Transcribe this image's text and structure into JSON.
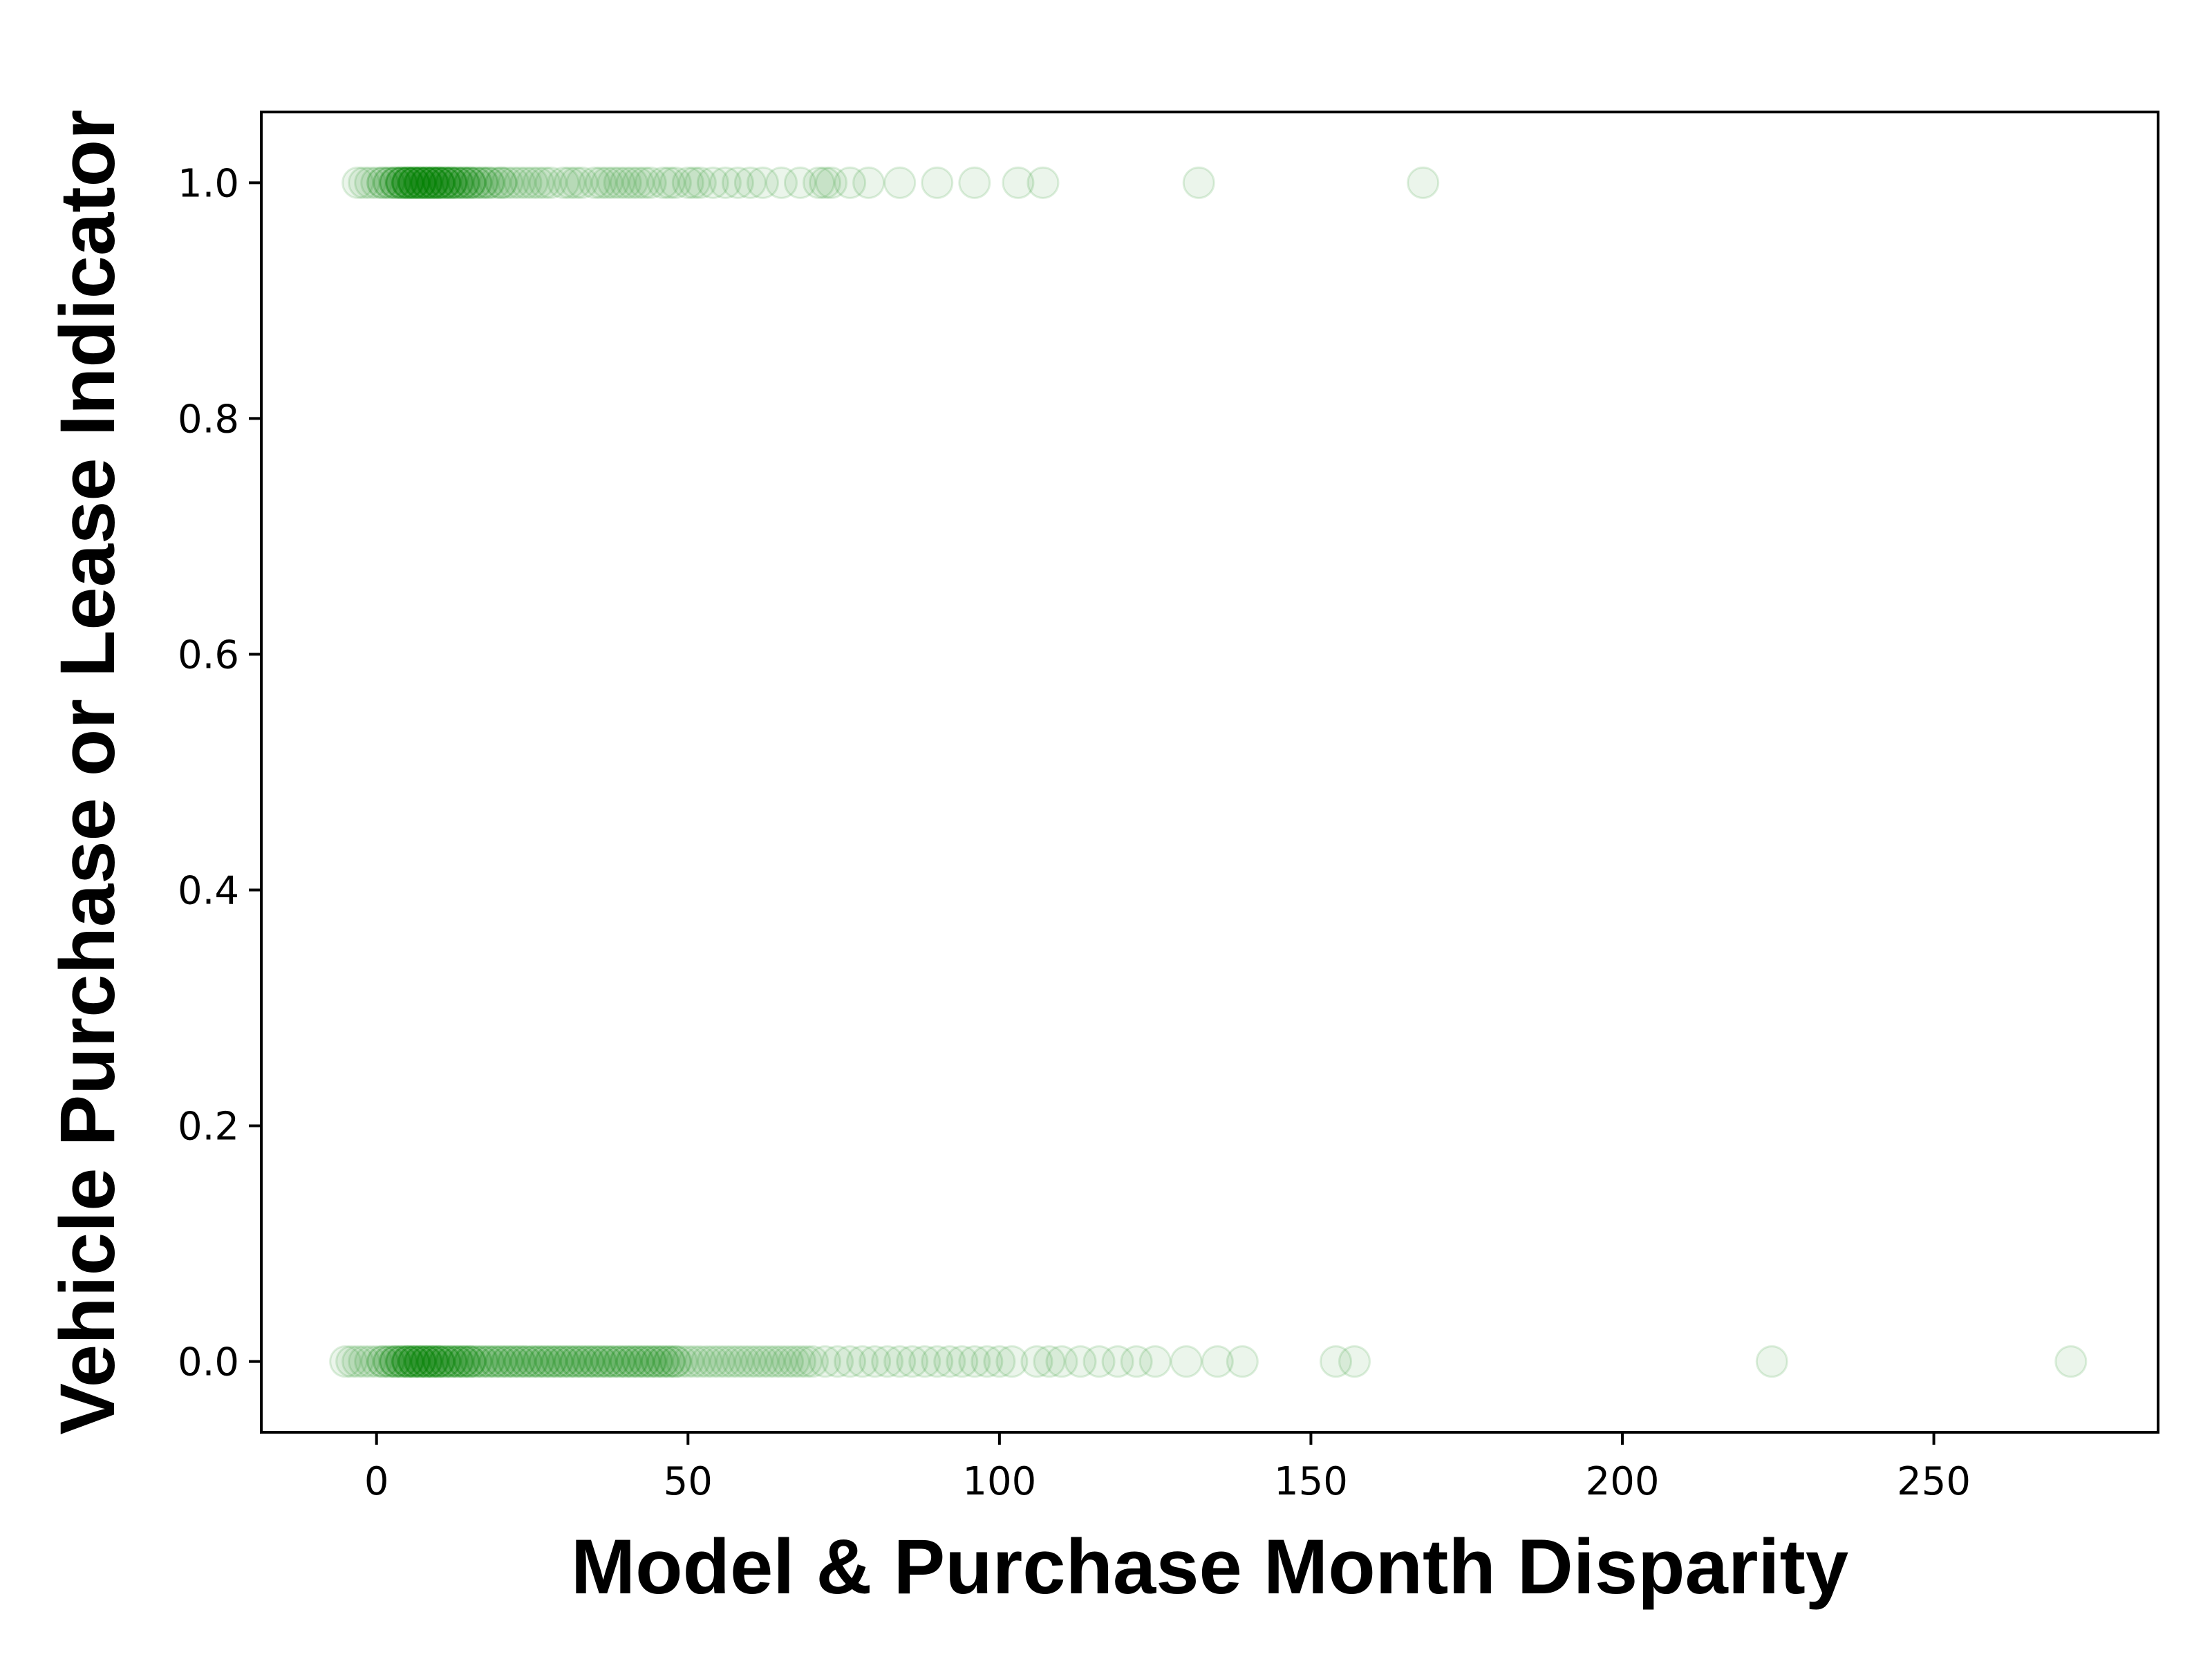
{
  "chart_data": {
    "type": "scatter",
    "title": "",
    "xlabel": "Model & Purchase Month Disparity",
    "ylabel": "Vehicle Purchase or Lease Indicator",
    "xlim": [
      -18.5,
      286
    ],
    "ylim": [
      -0.06,
      1.06
    ],
    "x_ticks": [
      0,
      50,
      100,
      150,
      200,
      250
    ],
    "x_tick_labels": [
      "0",
      "50",
      "100",
      "150",
      "200",
      "250"
    ],
    "y_ticks": [
      0.0,
      0.2,
      0.4,
      0.6,
      0.8,
      1.0
    ],
    "y_tick_labels": [
      "0.0",
      "0.2",
      "0.4",
      "0.6",
      "0.8",
      "1.0"
    ],
    "grid": false,
    "legend": "none",
    "marker_color": "#008000",
    "marker_alpha": 0.08,
    "series": [
      {
        "values_y": 1.0,
        "x": [
          -3,
          -2,
          -1,
          0,
          1,
          1,
          2,
          2,
          3,
          3,
          3,
          4,
          4,
          4,
          4,
          5,
          5,
          5,
          5,
          5,
          6,
          6,
          6,
          6,
          6,
          7,
          7,
          7,
          7,
          7,
          8,
          8,
          8,
          8,
          8,
          9,
          9,
          9,
          9,
          9,
          10,
          10,
          10,
          10,
          10,
          11,
          11,
          11,
          11,
          12,
          12,
          12,
          12,
          13,
          13,
          13,
          14,
          14,
          14,
          15,
          15,
          15,
          16,
          16,
          17,
          17,
          18,
          18,
          19,
          20,
          20,
          21,
          22,
          23,
          24,
          25,
          26,
          27,
          28,
          30,
          31,
          32,
          33,
          35,
          36,
          37,
          38,
          39,
          40,
          41,
          42,
          43,
          44,
          46,
          47,
          48,
          50,
          51,
          52,
          54,
          56,
          58,
          60,
          62,
          65,
          68,
          71,
          72,
          73,
          76,
          79,
          84,
          90,
          96,
          103,
          107,
          132,
          168
        ]
      },
      {
        "values_y": 0.0,
        "x": [
          -5,
          -4,
          -3,
          -2,
          -1,
          0,
          1,
          1,
          2,
          2,
          3,
          3,
          3,
          4,
          4,
          4,
          5,
          5,
          5,
          5,
          6,
          6,
          6,
          6,
          7,
          7,
          7,
          7,
          8,
          8,
          8,
          8,
          9,
          9,
          9,
          9,
          10,
          10,
          10,
          10,
          11,
          11,
          11,
          12,
          12,
          12,
          13,
          13,
          13,
          14,
          14,
          14,
          15,
          15,
          15,
          16,
          16,
          17,
          17,
          18,
          18,
          19,
          19,
          20,
          20,
          21,
          21,
          22,
          22,
          23,
          23,
          24,
          24,
          25,
          25,
          26,
          26,
          27,
          27,
          28,
          28,
          29,
          29,
          30,
          30,
          31,
          31,
          32,
          32,
          33,
          33,
          34,
          34,
          35,
          35,
          36,
          36,
          37,
          37,
          38,
          38,
          39,
          39,
          40,
          40,
          41,
          41,
          42,
          42,
          43,
          43,
          44,
          44,
          45,
          45,
          46,
          46,
          47,
          47,
          48,
          48,
          49,
          50,
          51,
          52,
          53,
          54,
          55,
          56,
          57,
          58,
          59,
          60,
          61,
          62,
          63,
          64,
          65,
          66,
          67,
          68,
          69,
          70,
          72,
          74,
          76,
          78,
          80,
          82,
          84,
          86,
          88,
          90,
          92,
          94,
          96,
          98,
          100,
          102,
          106,
          108,
          110,
          113,
          116,
          119,
          122,
          125,
          130,
          135,
          139,
          154,
          157,
          224,
          272
        ]
      }
    ]
  }
}
